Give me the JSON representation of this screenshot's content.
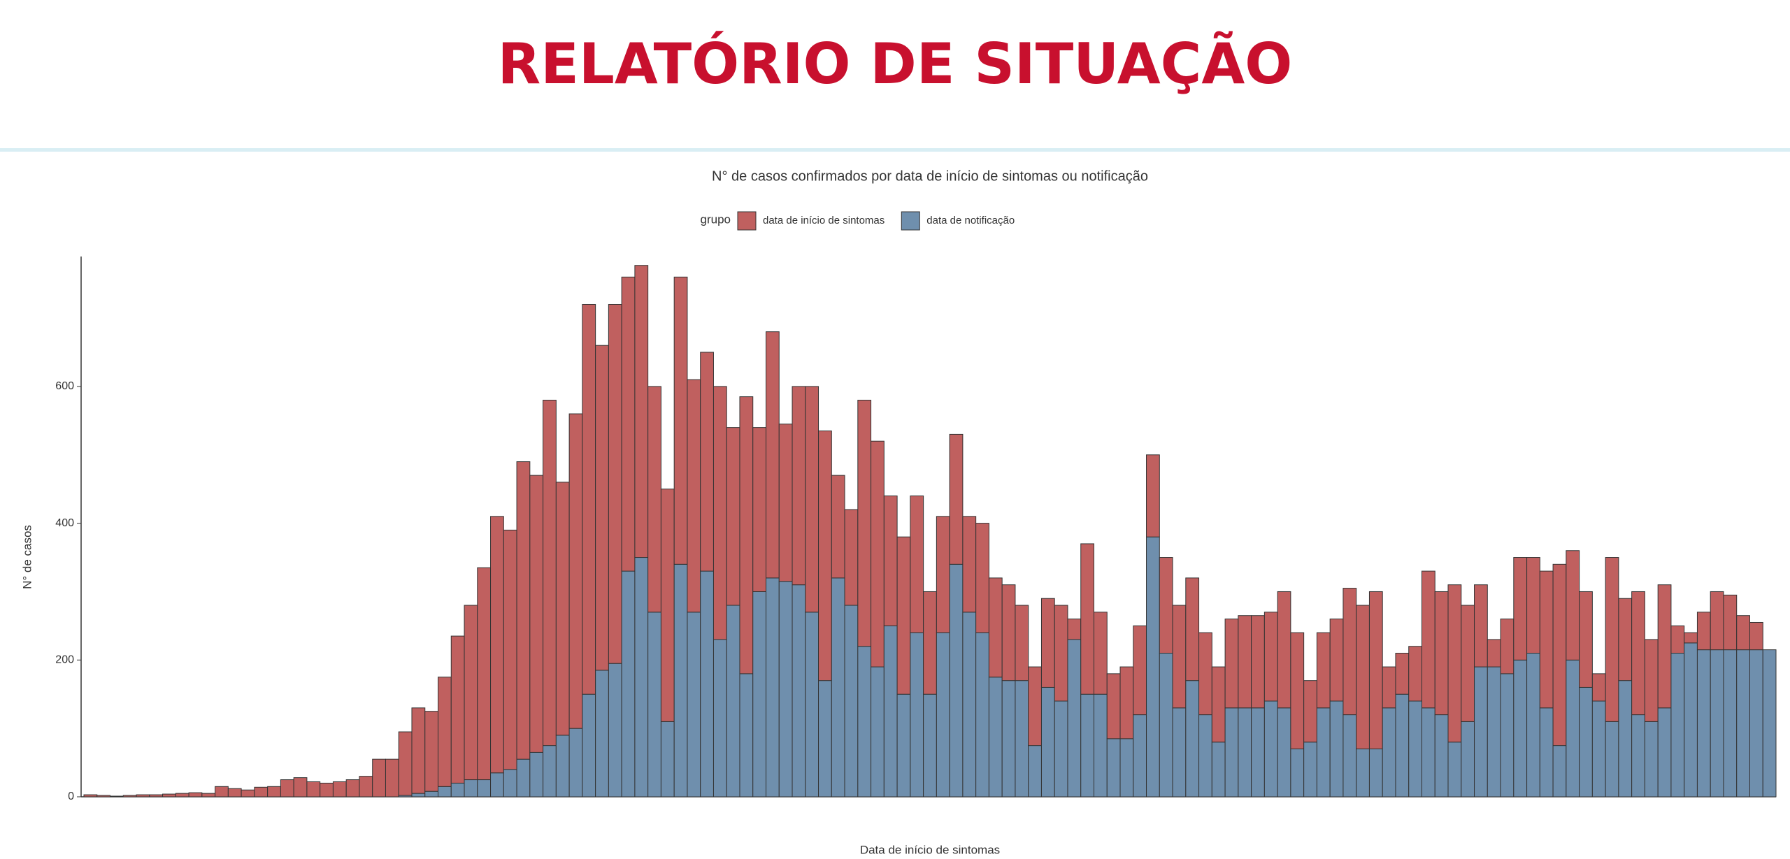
{
  "header": {
    "title": "RELATÓRIO DE SITUAÇÃO"
  },
  "chart_data": {
    "type": "stacked_bar",
    "title": "N° de casos confirmados por data de início de sintomas ou notificação",
    "legend_title": "grupo",
    "y_label": "N° de casos",
    "x_label": "Data de início de sintomas",
    "ylim": [
      0,
      790
    ],
    "yticks": [
      0,
      200,
      400,
      600
    ],
    "grid": false,
    "series": [
      {
        "name": "data de início de sintomas",
        "color": "#c0605f",
        "values": [
          3,
          2,
          1,
          2,
          3,
          3,
          4,
          5,
          6,
          5,
          15,
          12,
          10,
          14,
          15,
          25,
          28,
          22,
          20,
          22,
          25,
          30,
          55,
          55,
          93,
          125,
          117,
          160,
          215,
          255,
          310,
          375,
          350,
          435,
          405,
          505,
          370,
          460,
          570,
          475,
          525,
          430,
          427,
          330,
          340,
          420,
          340,
          320,
          370,
          260,
          405,
          240,
          360,
          230,
          290,
          330,
          365,
          150,
          140,
          360,
          330,
          190,
          230,
          200,
          150,
          170,
          190,
          140,
          160,
          145,
          140,
          110,
          115,
          130,
          140,
          30,
          220,
          120,
          95,
          105,
          130,
          120,
          140,
          150,
          150,
          120,
          110,
          130,
          135,
          135,
          130,
          170,
          170,
          90,
          110,
          120,
          185,
          210,
          230,
          60,
          60,
          80,
          200,
          180,
          230,
          170,
          120,
          40,
          80,
          150,
          140,
          200,
          265,
          160,
          140,
          40,
          240,
          120,
          180,
          120,
          180,
          40,
          15,
          55,
          85,
          80,
          50,
          40,
          0
        ]
      },
      {
        "name": "data de notificação",
        "color": "#6f8fad",
        "values": [
          0,
          0,
          0,
          0,
          0,
          0,
          0,
          0,
          0,
          0,
          0,
          0,
          0,
          0,
          0,
          0,
          0,
          0,
          0,
          0,
          0,
          0,
          0,
          0,
          2,
          5,
          8,
          15,
          20,
          25,
          25,
          35,
          40,
          55,
          65,
          75,
          90,
          100,
          150,
          185,
          195,
          330,
          350,
          270,
          110,
          340,
          270,
          330,
          230,
          280,
          180,
          300,
          320,
          315,
          310,
          270,
          170,
          320,
          280,
          220,
          190,
          250,
          150,
          240,
          150,
          240,
          340,
          270,
          240,
          175,
          170,
          170,
          75,
          160,
          140,
          230,
          150,
          150,
          85,
          85,
          120,
          380,
          210,
          130,
          170,
          120,
          80,
          130,
          130,
          130,
          140,
          130,
          70,
          80,
          130,
          140,
          120,
          70,
          70,
          130,
          150,
          140,
          130,
          120,
          80,
          110,
          190,
          190,
          180,
          200,
          210,
          130,
          75,
          200,
          160,
          140,
          110,
          170,
          120,
          110,
          130,
          210,
          225,
          215,
          215,
          215,
          215,
          215,
          215
        ]
      }
    ]
  }
}
